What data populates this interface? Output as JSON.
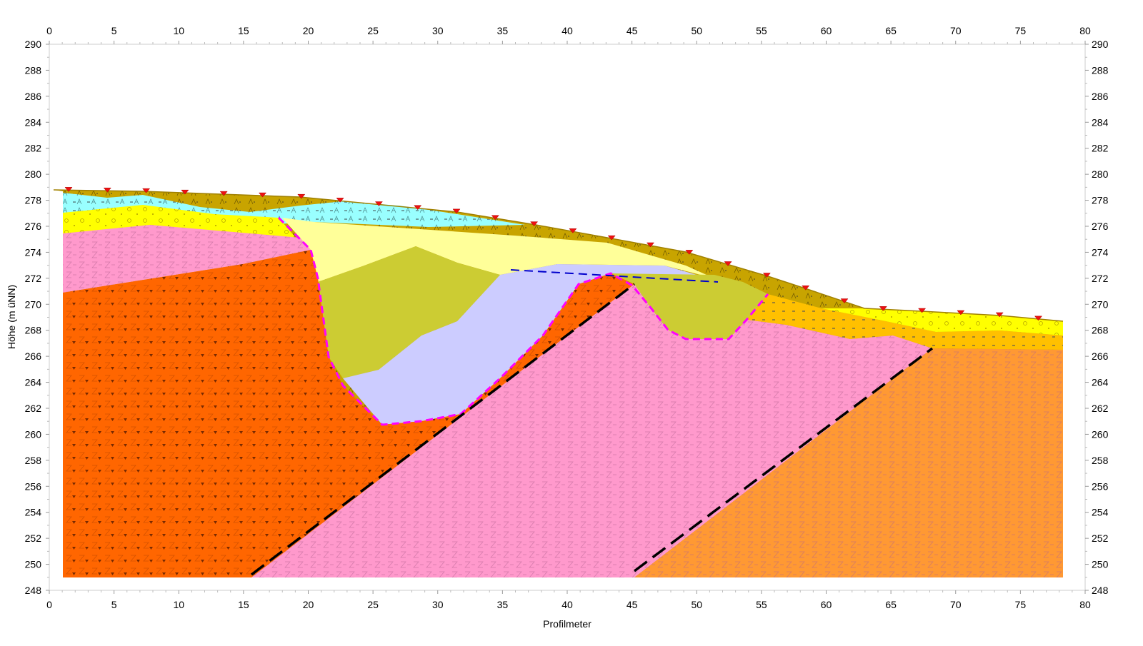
{
  "axes": {
    "xlabel": "Profilmeter",
    "ylabel": "Höhe (m üNN)",
    "x_ticks": [
      "0",
      "5",
      "10",
      "15",
      "20",
      "25",
      "30",
      "35",
      "40",
      "45",
      "50",
      "55",
      "60",
      "65",
      "70",
      "75",
      "80"
    ],
    "y_ticks": [
      "248",
      "250",
      "252",
      "254",
      "256",
      "258",
      "260",
      "262",
      "264",
      "266",
      "268",
      "270",
      "272",
      "274",
      "276",
      "278",
      "280",
      "282",
      "284",
      "286",
      "288",
      "290"
    ],
    "xlim": [
      0,
      80
    ],
    "ylim": [
      248,
      290
    ]
  },
  "colors": {
    "topsoil": "#c8a400",
    "cyan_layer": "#99ffff",
    "yellow_layer": "#ffff00",
    "pink_rock": "#ff99cc",
    "red_orange_rock": "#ff6600",
    "orange_rock": "#ff9933",
    "gold_layer": "#ffc000",
    "light_yellow_fill": "#ffff99",
    "olive_fill": "#cccc33",
    "lavender_fill": "#ccccff",
    "magenta_boundary": "#ff00ff",
    "blue_water_line": "#0000cc",
    "fault_line": "#000000",
    "marker": "#ee1111"
  }
}
